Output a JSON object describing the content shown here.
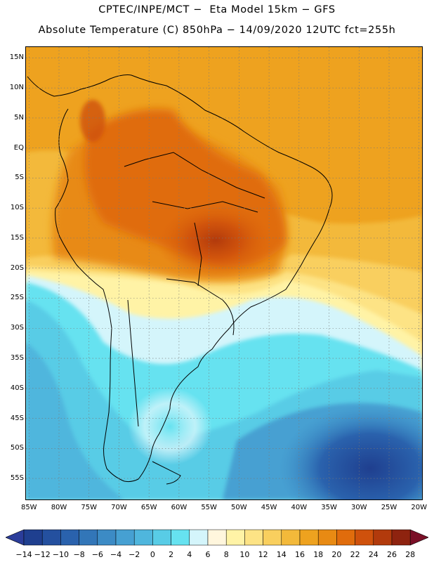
{
  "header": {
    "line1": "CPTEC/INPE/MCT −  Eta Model 15km − GFS",
    "line2": "Absolute Temperature (C) 850hPa − 14/09/2020 12UTC fct=255h"
  },
  "map": {
    "lat_labels": [
      "15N",
      "10N",
      "5N",
      "EQ",
      "5S",
      "10S",
      "15S",
      "20S",
      "25S",
      "30S",
      "35S",
      "40S",
      "45S",
      "50S",
      "55S"
    ],
    "lat_values": [
      15,
      10,
      5,
      0,
      -5,
      -10,
      -15,
      -20,
      -25,
      -30,
      -35,
      -40,
      -45,
      -50,
      -55
    ],
    "lon_labels": [
      "85W",
      "80W",
      "75W",
      "70W",
      "65W",
      "60W",
      "55W",
      "50W",
      "45W",
      "40W",
      "35W",
      "30W",
      "25W",
      "20W"
    ],
    "lon_values": [
      -85,
      -80,
      -75,
      -70,
      -65,
      -60,
      -55,
      -50,
      -45,
      -40,
      -35,
      -30,
      -25,
      -20
    ],
    "extent": {
      "lon_min": -85.5,
      "lon_max": -19.5,
      "lat_min": -58.5,
      "lat_max": 16.8
    },
    "gridlines": "dotted"
  },
  "colorbar": {
    "labels": [
      "-14",
      "-12",
      "-10",
      "-8",
      "-6",
      "-4",
      "-2",
      "0",
      "2",
      "4",
      "6",
      "8",
      "10",
      "12",
      "14",
      "16",
      "18",
      "20",
      "22",
      "24",
      "26",
      "28"
    ],
    "colors": [
      "#1f3f8f",
      "#24509f",
      "#2a62ad",
      "#3276b8",
      "#3c8bc5",
      "#46a0d2",
      "#4fb6dd",
      "#58cce6",
      "#66e2f0",
      "#d4f5fb",
      "#fff6dd",
      "#fff3a6",
      "#fde385",
      "#f9cf5e",
      "#f3b93a",
      "#eea21f",
      "#e88a13",
      "#e06c0c",
      "#cf510c",
      "#b23a0c",
      "#8e230f"
    ],
    "under_color": "#2b3d9a",
    "over_color": "#7a0f27"
  }
}
